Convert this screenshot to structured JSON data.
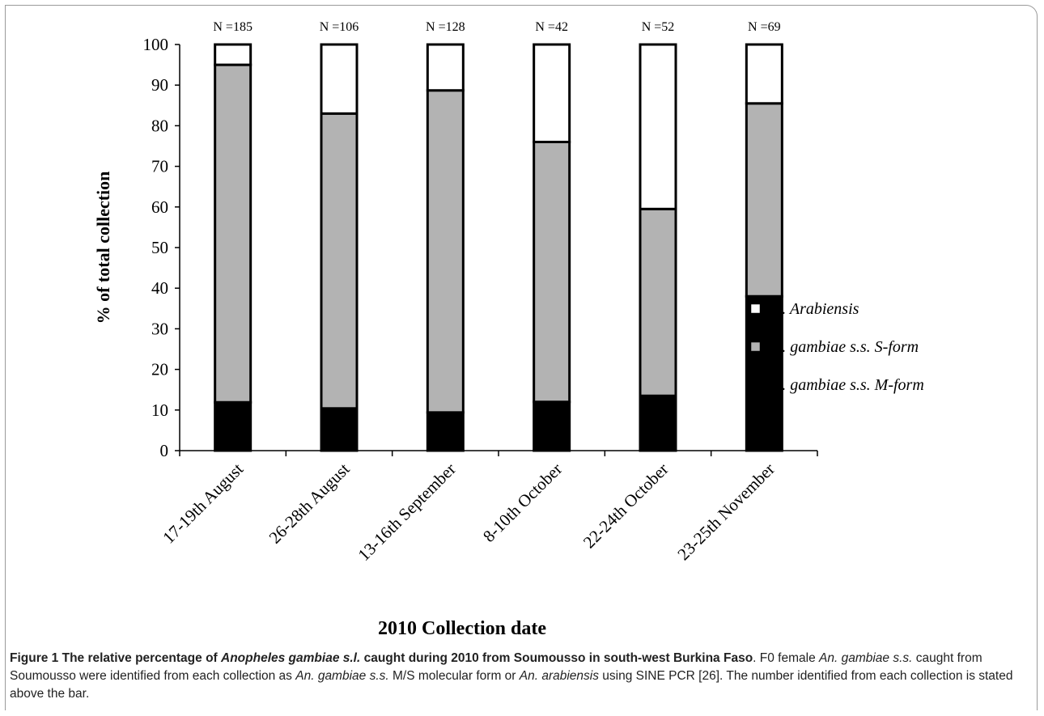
{
  "chart_data": {
    "type": "bar",
    "stacked": true,
    "title": "",
    "xlabel": "2010 Collection date",
    "ylabel": "% of total collection",
    "ylim": [
      0,
      100
    ],
    "yticks": [
      0,
      10,
      20,
      30,
      40,
      50,
      60,
      70,
      80,
      90,
      100
    ],
    "categories": [
      "17-19th August",
      "26-28th August",
      "13-16th September",
      "8-10th October",
      "22-24th October",
      "23-25th November"
    ],
    "annotations": [
      "N =185",
      "N =106",
      "N =128",
      "N =42",
      "N =52",
      "N =69"
    ],
    "series": [
      {
        "name": "An. gambiae s.s. M-form",
        "color": "#000000",
        "values": [
          11.9,
          10.4,
          9.4,
          12.0,
          13.5,
          38.0
        ]
      },
      {
        "name": "An. gambiae s.s. S-form",
        "color": "#b3b3b3",
        "values": [
          83.1,
          72.6,
          79.3,
          64.0,
          46.0,
          47.5
        ]
      },
      {
        "name": "An. Arabiensis",
        "color": "#ffffff",
        "values": [
          5.0,
          17.0,
          11.3,
          24.0,
          40.5,
          14.5
        ]
      }
    ],
    "legend_position": "right",
    "grid": false
  },
  "caption": {
    "figure_label": "Figure 1",
    "title_part1": "The relative percentage of ",
    "title_species": "Anopheles gambiae s.l.",
    "title_part2": " caught during 2010 from Soumousso in south-west Burkina Faso",
    "text_part1": ". F0 female ",
    "text_species1": "An. gambiae s.s.",
    "text_part2": " caught from Soumousso were identified from each collection as ",
    "text_species2": "An. gambiae s.s.",
    "text_part3": " M/S molecular form or ",
    "text_species3": "An. arabiensis",
    "text_part4": " using SINE PCR [26]. The number identified from each collection is stated above the bar."
  }
}
